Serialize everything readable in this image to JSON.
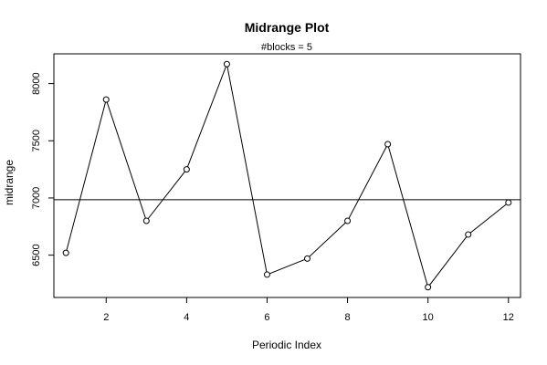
{
  "chart_data": {
    "type": "line",
    "title": "Midrange Plot",
    "subtitle": "#blocks =  5",
    "xlabel": "Periodic Index",
    "ylabel": "midrange",
    "xlim": [
      0.7,
      12.3
    ],
    "ylim": [
      6130,
      8260
    ],
    "x_ticks": [
      2,
      4,
      6,
      8,
      10,
      12
    ],
    "y_ticks": [
      6500,
      7000,
      7500,
      8000
    ],
    "reference_line": 6985,
    "series": [
      {
        "x": [
          1,
          2,
          3,
          4,
          5,
          6,
          7,
          8,
          9,
          10,
          11,
          12
        ],
        "values": [
          6520,
          7860,
          6800,
          7250,
          8170,
          6330,
          6470,
          6800,
          7470,
          6220,
          6680,
          6960
        ]
      }
    ],
    "grid": false,
    "colors": {
      "line": "#000000",
      "marker_fill": "#ffffff"
    }
  }
}
